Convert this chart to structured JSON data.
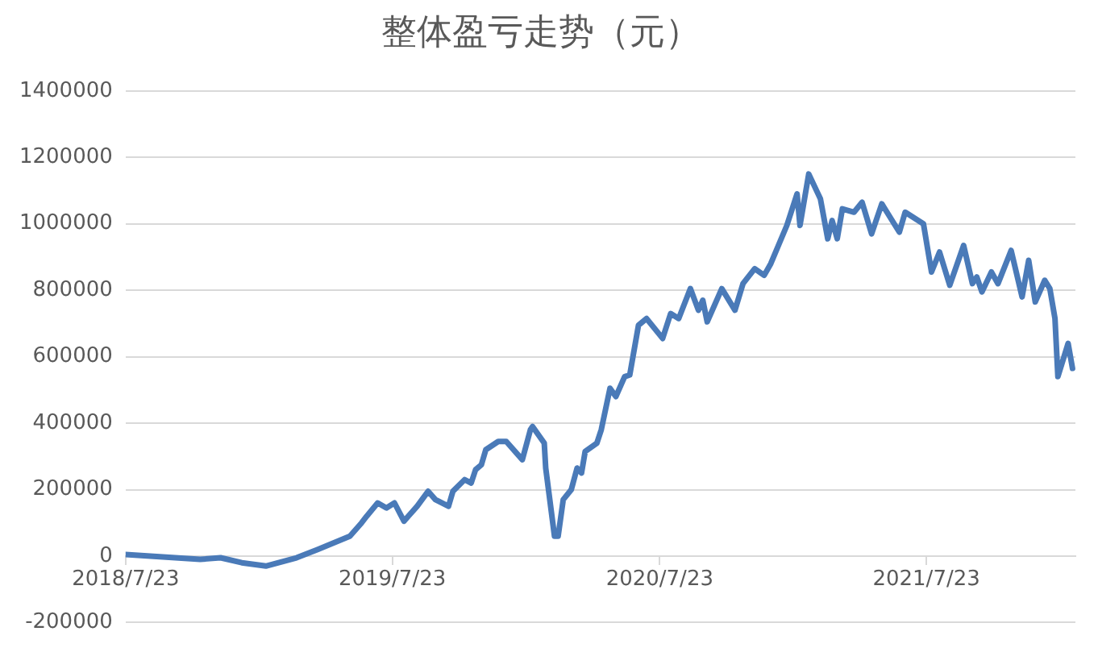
{
  "chart_data": {
    "type": "line",
    "title": "整体盈亏走势（元）",
    "x": [
      "2018-07-23",
      "2018-11-02",
      "2018-11-30",
      "2018-12-29",
      "2019-01-31",
      "2019-03-14",
      "2019-04-12",
      "2019-05-26",
      "2019-06-11",
      "2019-06-18",
      "2019-07-03",
      "2019-07-15",
      "2019-07-26",
      "2019-08-08",
      "2019-08-26",
      "2019-09-10",
      "2019-09-20",
      "2019-10-08",
      "2019-10-14",
      "2019-10-30",
      "2019-11-08",
      "2019-11-14",
      "2019-11-22",
      "2019-11-28",
      "2019-12-15",
      "2019-12-26",
      "2020-01-17",
      "2020-01-28",
      "2020-01-31",
      "2020-02-16",
      "2020-02-18",
      "2020-03-01",
      "2020-03-06",
      "2020-03-13",
      "2020-03-24",
      "2020-04-01",
      "2020-04-07",
      "2020-04-12",
      "2020-04-28",
      "2020-05-04",
      "2020-05-16",
      "2020-05-24",
      "2020-06-05",
      "2020-06-12",
      "2020-06-24",
      "2020-07-05",
      "2020-07-27",
      "2020-08-07",
      "2020-08-18",
      "2020-09-03",
      "2020-09-14",
      "2020-09-20",
      "2020-09-26",
      "2020-10-16",
      "2020-11-03",
      "2020-11-14",
      "2020-11-30",
      "2020-12-13",
      "2020-12-22",
      "2021-01-13",
      "2021-01-27",
      "2021-01-31",
      "2021-02-12",
      "2021-02-28",
      "2021-03-10",
      "2021-03-16",
      "2021-03-23",
      "2021-03-30",
      "2021-04-15",
      "2021-04-26",
      "2021-05-09",
      "2021-05-23",
      "2021-06-16",
      "2021-06-24",
      "2021-07-19",
      "2021-07-30",
      "2021-08-10",
      "2021-08-24",
      "2021-09-12",
      "2021-09-24",
      "2021-09-30",
      "2021-10-07",
      "2021-10-20",
      "2021-10-29",
      "2021-11-16",
      "2021-12-01",
      "2021-12-10",
      "2021-12-19",
      "2022-01-01",
      "2022-01-08",
      "2022-01-15",
      "2022-01-19",
      "2022-02-02",
      "2022-02-08"
    ],
    "values": [
      5000,
      -10000,
      -5000,
      -20000,
      -30000,
      -5000,
      20000,
      60000,
      100000,
      120000,
      160000,
      145000,
      160000,
      105000,
      150000,
      195000,
      170000,
      150000,
      195000,
      230000,
      220000,
      260000,
      275000,
      320000,
      345000,
      345000,
      290000,
      380000,
      390000,
      340000,
      265000,
      60000,
      60000,
      170000,
      200000,
      265000,
      250000,
      315000,
      340000,
      380000,
      505000,
      480000,
      540000,
      545000,
      695000,
      715000,
      655000,
      730000,
      715000,
      805000,
      740000,
      770000,
      705000,
      805000,
      740000,
      820000,
      865000,
      845000,
      880000,
      995000,
      1090000,
      995000,
      1150000,
      1075000,
      955000,
      1010000,
      955000,
      1045000,
      1035000,
      1065000,
      970000,
      1060000,
      975000,
      1035000,
      1000000,
      855000,
      915000,
      815000,
      935000,
      820000,
      840000,
      795000,
      855000,
      820000,
      920000,
      780000,
      890000,
      765000,
      830000,
      805000,
      715000,
      540000,
      640000,
      565000
    ],
    "color": "#4a7ab8",
    "xlim": [
      "2018-07-23",
      "2022-02-12"
    ],
    "xticks": [
      {
        "value": "2018-07-23",
        "label": "2018/7/23"
      },
      {
        "value": "2019-07-23",
        "label": "2019/7/23"
      },
      {
        "value": "2020-07-23",
        "label": "2020/7/23"
      },
      {
        "value": "2021-07-23",
        "label": "2021/7/23"
      }
    ],
    "ylim": [
      -200000,
      1400000
    ],
    "yticks": [
      -200000,
      0,
      200000,
      400000,
      600000,
      800000,
      1000000,
      1200000,
      1400000
    ],
    "grid": "y",
    "legend": false,
    "marker": "none",
    "line_style": "solid"
  }
}
